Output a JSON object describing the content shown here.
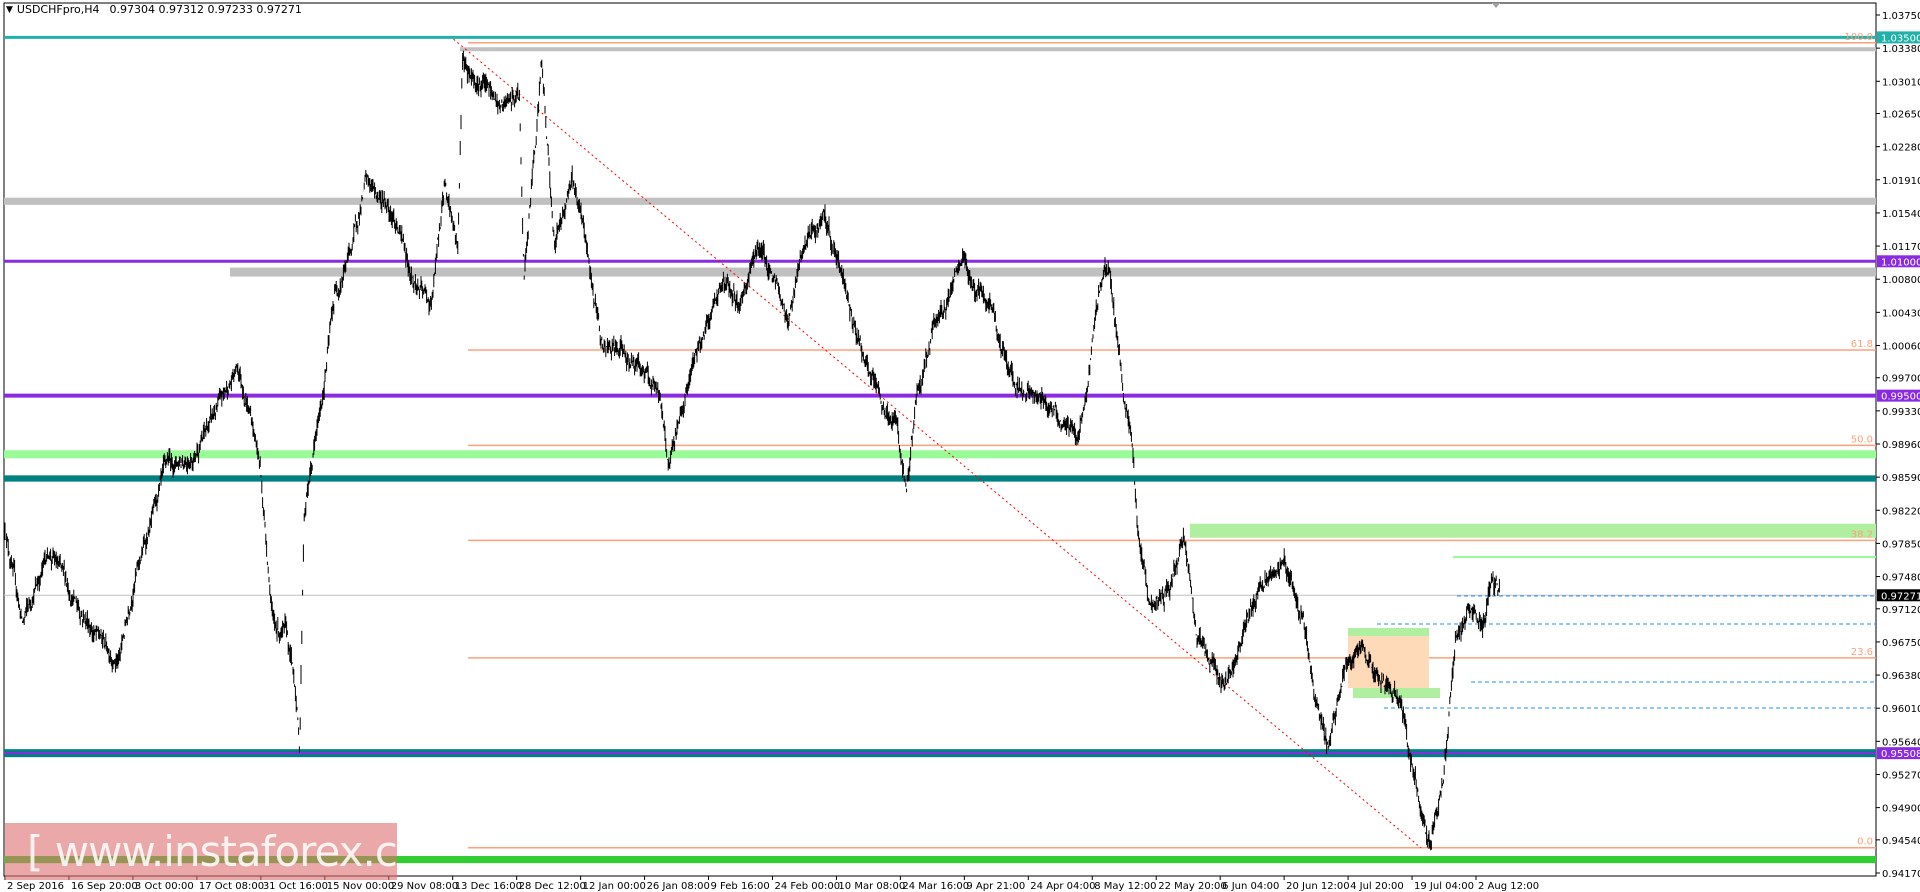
{
  "header": {
    "symbol": "USDCHFpro,H4",
    "ohlc": "0.97304 0.97312 0.97233 0.97271",
    "menu_icon": "triangle-down-icon"
  },
  "watermark": "[  www.instaforex.com ]",
  "colors": {
    "bars": "#000000",
    "teal": "#20b2aa",
    "darkteal": "#008080",
    "purple": "#8a2be2",
    "fib": "#ffa07a",
    "gray": "#c0c0c0",
    "lightgreen": "#98fb98",
    "green": "#32cd32",
    "blue": "#1e90ff",
    "red": "#ff0000",
    "box": "#ffdab9"
  },
  "chart_data": {
    "type": "ohlc",
    "title": "USDCHFpro,H4",
    "price_axis": {
      "range": [
        0.9417,
        1.0375
      ],
      "ticks": [
        "1.03750",
        "1.03380",
        "1.03010",
        "1.02650",
        "1.02280",
        "1.01910",
        "1.01540",
        "1.01170",
        "1.00800",
        "1.00430",
        "1.00060",
        "0.99700",
        "0.99330",
        "0.98960",
        "0.98590",
        "0.98220",
        "0.97850",
        "0.97480",
        "0.97120",
        "0.96750",
        "0.96380",
        "0.96010",
        "0.95640",
        "0.95270",
        "0.94900",
        "0.94540",
        "0.94170"
      ]
    },
    "time_axis": {
      "ticks": [
        "2 Sep 2016",
        "16 Sep 20:00",
        "3 Oct 00:00",
        "17 Oct 08:00",
        "31 Oct 16:00",
        "15 Nov 00:00",
        "29 Nov 08:00",
        "13 Dec 16:00",
        "28 Dec 12:00",
        "12 Jan 00:00",
        "26 Jan 08:00",
        "9 Feb 16:00",
        "24 Feb 00:00",
        "10 Mar 08:00",
        "24 Mar 16:00",
        "9 Apr 21:00",
        "24 Apr 04:00",
        "8 May 12:00",
        "22 May 20:00",
        "6 Jun 04:00",
        "20 Jun 12:00",
        "4 Jul 20:00",
        "19 Jul 04:00",
        "2 Aug 12:00"
      ],
      "start": "2016-09-02T00:00",
      "end_tick": "2017-08-02T12:00"
    },
    "price_path": [
      [
        "2016-09-02",
        0.9804
      ],
      [
        "2016-09-06",
        0.9695
      ],
      [
        "2016-09-12",
        0.9777
      ],
      [
        "2016-09-18",
        0.9722
      ],
      [
        "2016-09-23",
        0.9681
      ],
      [
        "2016-09-28",
        0.9654
      ],
      [
        "2016-10-01",
        0.9736
      ],
      [
        "2016-10-09",
        0.9872
      ],
      [
        "2016-10-15",
        0.9886
      ],
      [
        "2016-10-21",
        0.9941
      ],
      [
        "2016-10-25",
        0.9982
      ],
      [
        "2016-10-28",
        0.9927
      ],
      [
        "2016-10-30",
        0.9872
      ],
      [
        "2016-11-02",
        0.9695
      ],
      [
        "2016-11-05",
        0.9681
      ],
      [
        "2016-11-07",
        0.9626
      ],
      [
        "2016-11-08",
        0.9558
      ],
      [
        "2016-11-09",
        0.9818
      ],
      [
        "2016-11-13",
        0.9941
      ],
      [
        "2016-11-16",
        1.0064
      ],
      [
        "2016-11-20",
        1.0118
      ],
      [
        "2016-11-23",
        1.0187
      ],
      [
        "2016-11-29",
        1.0159
      ],
      [
        "2016-12-04",
        1.0077
      ],
      [
        "2016-12-08",
        1.005
      ],
      [
        "2016-12-11",
        1.0187
      ],
      [
        "2016-12-14",
        1.0118
      ],
      [
        "2016-12-15",
        1.0324
      ],
      [
        "2016-12-20",
        1.0296
      ],
      [
        "2016-12-24",
        1.0269
      ],
      [
        "2016-12-28",
        1.0283
      ],
      [
        "2016-12-29",
        1.0077
      ],
      [
        "2017-01-02",
        1.0324
      ],
      [
        "2017-01-05",
        1.0118
      ],
      [
        "2017-01-09",
        1.02
      ],
      [
        "2017-01-12",
        1.0118
      ],
      [
        "2017-01-16",
        1.0002
      ],
      [
        "2017-01-21",
        0.9995
      ],
      [
        "2017-01-25",
        0.9982
      ],
      [
        "2017-01-29",
        0.9941
      ],
      [
        "2017-01-31",
        0.9872
      ],
      [
        "2017-02-03",
        0.9941
      ],
      [
        "2017-02-08",
        1.0023
      ],
      [
        "2017-02-12",
        1.0077
      ],
      [
        "2017-02-16",
        1.005
      ],
      [
        "2017-02-20",
        1.0118
      ],
      [
        "2017-02-23",
        1.0091
      ],
      [
        "2017-02-27",
        1.0036
      ],
      [
        "2017-03-03",
        1.0118
      ],
      [
        "2017-03-07",
        1.0146
      ],
      [
        "2017-03-11",
        1.0091
      ],
      [
        "2017-03-14",
        1.0036
      ],
      [
        "2017-03-17",
        0.9982
      ],
      [
        "2017-03-20",
        0.9941
      ],
      [
        "2017-03-24",
        0.9913
      ],
      [
        "2017-03-26",
        0.9831
      ],
      [
        "2017-03-28",
        0.9941
      ],
      [
        "2017-04-01",
        1.0023
      ],
      [
        "2017-04-05",
        1.0064
      ],
      [
        "2017-04-08",
        1.0098
      ],
      [
        "2017-04-11",
        1.0064
      ],
      [
        "2017-04-15",
        1.0036
      ],
      [
        "2017-04-18",
        0.9982
      ],
      [
        "2017-04-22",
        0.9954
      ],
      [
        "2017-04-28",
        0.9941
      ],
      [
        "2017-05-04",
        0.99
      ],
      [
        "2017-05-06",
        0.9954
      ],
      [
        "2017-05-09",
        1.0077
      ],
      [
        "2017-05-11",
        1.0091
      ],
      [
        "2017-05-13",
        1.0009
      ],
      [
        "2017-05-16",
        0.99
      ],
      [
        "2017-05-18",
        0.9777
      ],
      [
        "2017-05-21",
        0.9708
      ],
      [
        "2017-05-25",
        0.9736
      ],
      [
        "2017-05-28",
        0.979
      ],
      [
        "2017-05-31",
        0.9681
      ],
      [
        "2017-06-05",
        0.964
      ],
      [
        "2017-06-07",
        0.9626
      ],
      [
        "2017-06-11",
        0.9695
      ],
      [
        "2017-06-16",
        0.9749
      ],
      [
        "2017-06-20",
        0.9763
      ],
      [
        "2017-06-24",
        0.9708
      ],
      [
        "2017-06-27",
        0.9599
      ],
      [
        "2017-06-30",
        0.9558
      ],
      [
        "2017-07-04",
        0.9654
      ],
      [
        "2017-07-08",
        0.9667
      ],
      [
        "2017-07-12",
        0.9626
      ],
      [
        "2017-07-16",
        0.9613
      ],
      [
        "2017-07-19",
        0.9531
      ],
      [
        "2017-07-22",
        0.9462
      ],
      [
        "2017-07-23",
        0.9449
      ],
      [
        "2017-07-26",
        0.9517
      ],
      [
        "2017-07-29",
        0.9681
      ],
      [
        "2017-08-01",
        0.9708
      ],
      [
        "2017-08-04",
        0.9695
      ],
      [
        "2017-08-06",
        0.9736
      ],
      [
        "2017-08-08",
        0.9727
      ]
    ],
    "levels": [
      {
        "price": 1.035,
        "color": "teal",
        "label": "1.03500",
        "kind": "line",
        "width": 3
      },
      {
        "price": 1.0167,
        "color": "gray",
        "kind": "band",
        "span": 0.0008
      },
      {
        "price": 1.01,
        "color": "purple",
        "label": "1.01000",
        "kind": "line",
        "width": 3
      },
      {
        "price": 0.995,
        "color": "purple",
        "label": "0.99500",
        "kind": "line",
        "width": 4
      },
      {
        "price": 0.98845,
        "color": "lightgreen",
        "kind": "band",
        "span": 0.0009
      },
      {
        "price": 0.98575,
        "color": "darkteal",
        "kind": "band",
        "span": 0.0007
      },
      {
        "price": 0.97271,
        "color": "gray",
        "label": "0.97271",
        "kind": "current"
      },
      {
        "price": 0.95508,
        "color": "purple",
        "label": "0.95508",
        "kind": "dual"
      },
      {
        "price": 0.9432,
        "color": "green",
        "kind": "band",
        "span": 0.0008
      }
    ],
    "fibonacci": [
      {
        "label": "100.0",
        "price": 1.0344
      },
      {
        "label": "61.8",
        "price": 1.0001
      },
      {
        "label": "50.0",
        "price": 0.98945
      },
      {
        "label": "38.2",
        "price": 0.97884
      },
      {
        "label": "23.6",
        "price": 0.96572
      },
      {
        "label": "0.0",
        "price": 0.94452
      }
    ],
    "trendline": {
      "from": [
        "2016-12-13",
        1.0348
      ],
      "to": [
        "2017-07-21",
        0.9445
      ]
    }
  }
}
